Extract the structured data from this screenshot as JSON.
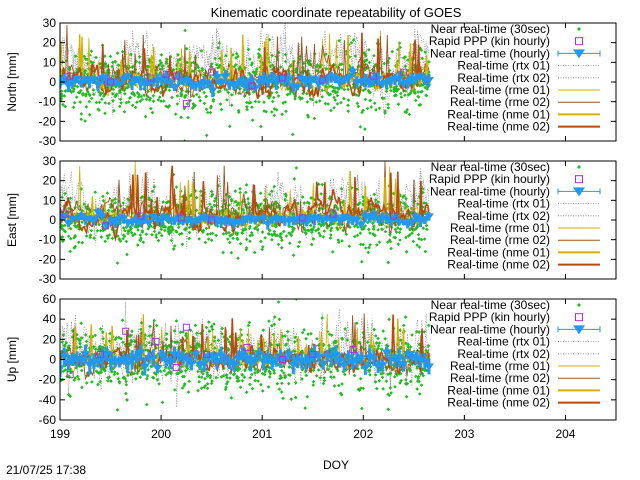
{
  "figure": {
    "title": "Kinematic coordinate repeatability of GOES",
    "xlabel": "DOY",
    "timestamp": "21/07/25 17:38"
  },
  "colors": {
    "nrt30": "#22bb22",
    "ppp": "#aa33cc",
    "nrt_hourly": "#2299ee",
    "rtx": "#888888",
    "rme01": "#d4b000",
    "rme02": "#9a5522",
    "nme01": "#d4b000",
    "nme02": "#b84a10"
  },
  "legend": [
    {
      "label": "Near real-time (30sec)",
      "key": "nrt30",
      "style": "points"
    },
    {
      "label": "Rapid PPP (kin hourly)",
      "key": "ppp",
      "style": "square"
    },
    {
      "label": "Near real-time (hourly)",
      "key": "nrt_hourly",
      "style": "errorbar"
    },
    {
      "label": "Real-time (rtx 01)",
      "key": "rtx",
      "style": "dotted"
    },
    {
      "label": "Real-time (rtx 02)",
      "key": "rtx",
      "style": "dotted"
    },
    {
      "label": "Real-time (rme 01)",
      "key": "rme01",
      "style": "thin"
    },
    {
      "label": "Real-time (rme 02)",
      "key": "rme02",
      "style": "thin"
    },
    {
      "label": "Real-time (nme 01)",
      "key": "nme01",
      "style": "thick"
    },
    {
      "label": "Real-time (nme 02)",
      "key": "nme02",
      "style": "thick"
    }
  ],
  "chart_data": [
    {
      "type": "scatter",
      "ylabel": "North [mm]",
      "xlim": [
        199,
        204.5
      ],
      "ylim": [
        -30,
        30
      ],
      "xticks": [
        199,
        200,
        201,
        202,
        203,
        204
      ],
      "yticks": [
        -30,
        -20,
        -10,
        0,
        10,
        20,
        30
      ],
      "data_x_range": [
        199.0,
        202.65
      ],
      "series": [
        {
          "name": "Near real-time (30sec)",
          "spread": 8,
          "bias": 0
        },
        {
          "name": "Near real-time (hourly)",
          "spread": 3,
          "bias": 0
        },
        {
          "name": "Rapid PPP (kin hourly)",
          "x": [
            199.1,
            199.5,
            199.9,
            200.05,
            200.15,
            200.25,
            200.5,
            200.9,
            201.2,
            201.6,
            202.1,
            202.4
          ],
          "y": [
            3,
            0,
            2,
            4,
            3,
            -11,
            5,
            -2,
            2,
            1,
            3,
            5
          ]
        },
        {
          "name": "Real-time (rtx 01)",
          "spread": 7,
          "bias": 14
        },
        {
          "name": "Real-time (rme 02)",
          "spread": 6,
          "bias": 2
        }
      ]
    },
    {
      "type": "scatter",
      "ylabel": "East [mm]",
      "xlim": [
        199,
        204.5
      ],
      "ylim": [
        -30,
        30
      ],
      "xticks": [
        199,
        200,
        201,
        202,
        203,
        204
      ],
      "yticks": [
        -30,
        -20,
        -10,
        0,
        10,
        20,
        30
      ],
      "data_x_range": [
        199.0,
        202.65
      ],
      "series": [
        {
          "name": "Near real-time (30sec)",
          "spread": 7,
          "bias": 0
        },
        {
          "name": "Near real-time (hourly)",
          "spread": 2.5,
          "bias": 0
        },
        {
          "name": "Rapid PPP (kin hourly)",
          "x": [
            199.05,
            199.45,
            199.8,
            200.2,
            200.5,
            201.4,
            201.7,
            202.3
          ],
          "y": [
            3,
            -3,
            2,
            1,
            0,
            1,
            3,
            2
          ]
        },
        {
          "name": "Real-time (rtx 01)",
          "spread": 6,
          "bias": 12
        },
        {
          "name": "Real-time (rme 02)",
          "spread": 6,
          "bias": 3
        }
      ]
    },
    {
      "type": "scatter",
      "ylabel": "Up [mm]",
      "xlim": [
        199,
        204.5
      ],
      "ylim": [
        -60,
        60
      ],
      "xticks": [
        199,
        200,
        201,
        202,
        203,
        204
      ],
      "yticks": [
        -60,
        -40,
        -20,
        0,
        20,
        40,
        60
      ],
      "data_x_range": [
        199.0,
        202.65
      ],
      "series": [
        {
          "name": "Near real-time (30sec)",
          "spread": 16,
          "bias": 0
        },
        {
          "name": "Near real-time (hourly)",
          "spread": 8,
          "bias": 0
        },
        {
          "name": "Rapid PPP (kin hourly)",
          "x": [
            199.1,
            199.4,
            199.65,
            199.95,
            200.15,
            200.25,
            200.45,
            200.85,
            201.2,
            201.5,
            201.9
          ],
          "y": [
            -15,
            5,
            28,
            18,
            -8,
            32,
            5,
            12,
            0,
            5,
            10
          ]
        },
        {
          "name": "Real-time (rtx 01)",
          "spread": 15,
          "bias": 15
        },
        {
          "name": "Real-time (rme 02)",
          "spread": 10,
          "bias": 0
        }
      ]
    }
  ]
}
